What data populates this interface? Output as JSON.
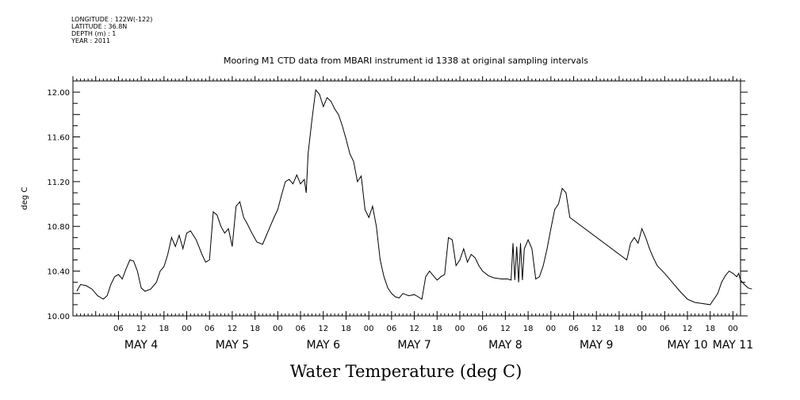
{
  "header": {
    "longitude": "LONGITUDE : 122W(-122)",
    "latitude": "LATITUDE : 36.8N",
    "depth": "DEPTH (m) : 1",
    "year": "YEAR : 2011"
  },
  "chart_data": {
    "type": "line",
    "title": "Mooring M1 CTD data from MBARI instrument id 1338 at original sampling intervals",
    "xlabel": "Water Temperature (deg C)",
    "ylabel": "deg C",
    "xlim": [
      "2011-05-03T18:00",
      "2011-05-11T02:00"
    ],
    "ylim": [
      10.0,
      12.1
    ],
    "y_ticks": [
      "10.00",
      "10.40",
      "10.80",
      "11.20",
      "11.60",
      "12.00"
    ],
    "x_hour_ticks": [
      {
        "t": "2011-05-04T06:00",
        "label": "06"
      },
      {
        "t": "2011-05-04T12:00",
        "label": "12"
      },
      {
        "t": "2011-05-04T18:00",
        "label": "18"
      },
      {
        "t": "2011-05-05T00:00",
        "label": "00"
      },
      {
        "t": "2011-05-05T06:00",
        "label": "06"
      },
      {
        "t": "2011-05-05T12:00",
        "label": "12"
      },
      {
        "t": "2011-05-05T18:00",
        "label": "18"
      },
      {
        "t": "2011-05-06T00:00",
        "label": "00"
      },
      {
        "t": "2011-05-06T06:00",
        "label": "06"
      },
      {
        "t": "2011-05-06T12:00",
        "label": "12"
      },
      {
        "t": "2011-05-06T18:00",
        "label": "18"
      },
      {
        "t": "2011-05-07T00:00",
        "label": "00"
      },
      {
        "t": "2011-05-07T06:00",
        "label": "06"
      },
      {
        "t": "2011-05-07T12:00",
        "label": "12"
      },
      {
        "t": "2011-05-07T18:00",
        "label": "18"
      },
      {
        "t": "2011-05-08T00:00",
        "label": "00"
      },
      {
        "t": "2011-05-08T06:00",
        "label": "06"
      },
      {
        "t": "2011-05-08T12:00",
        "label": "12"
      },
      {
        "t": "2011-05-08T18:00",
        "label": "18"
      },
      {
        "t": "2011-05-09T00:00",
        "label": "00"
      },
      {
        "t": "2011-05-09T06:00",
        "label": "06"
      },
      {
        "t": "2011-05-09T12:00",
        "label": "12"
      },
      {
        "t": "2011-05-09T18:00",
        "label": "18"
      },
      {
        "t": "2011-05-10T00:00",
        "label": "00"
      },
      {
        "t": "2011-05-10T06:00",
        "label": "06"
      },
      {
        "t": "2011-05-10T12:00",
        "label": "12"
      },
      {
        "t": "2011-05-10T18:00",
        "label": "18"
      },
      {
        "t": "2011-05-11T00:00",
        "label": "00"
      }
    ],
    "x_day_labels": [
      {
        "t": "2011-05-04T12:00",
        "label": "MAY  4"
      },
      {
        "t": "2011-05-05T12:00",
        "label": "MAY  5"
      },
      {
        "t": "2011-05-06T12:00",
        "label": "MAY  6"
      },
      {
        "t": "2011-05-07T12:00",
        "label": "MAY  7"
      },
      {
        "t": "2011-05-08T12:00",
        "label": "MAY  8"
      },
      {
        "t": "2011-05-09T12:00",
        "label": "MAY  9"
      },
      {
        "t": "2011-05-10T12:00",
        "label": "MAY 10"
      },
      {
        "t": "2011-05-11T00:00",
        "label": "MAY 11"
      }
    ],
    "series": [
      {
        "points": [
          [
            "2011-05-03T19:00",
            10.22
          ],
          [
            "2011-05-03T20:00",
            10.28
          ],
          [
            "2011-05-03T21:30",
            10.27
          ],
          [
            "2011-05-03T23:00",
            10.24
          ],
          [
            "2011-05-04T00:30",
            10.18
          ],
          [
            "2011-05-04T02:00",
            10.15
          ],
          [
            "2011-05-04T03:00",
            10.18
          ],
          [
            "2011-05-04T04:00",
            10.28
          ],
          [
            "2011-05-04T05:00",
            10.35
          ],
          [
            "2011-05-04T06:00",
            10.37
          ],
          [
            "2011-05-04T07:00",
            10.33
          ],
          [
            "2011-05-04T08:00",
            10.42
          ],
          [
            "2011-05-04T09:00",
            10.5
          ],
          [
            "2011-05-04T10:00",
            10.49
          ],
          [
            "2011-05-04T11:00",
            10.4
          ],
          [
            "2011-05-04T12:00",
            10.25
          ],
          [
            "2011-05-04T13:00",
            10.22
          ],
          [
            "2011-05-04T14:30",
            10.24
          ],
          [
            "2011-05-04T16:00",
            10.3
          ],
          [
            "2011-05-04T17:00",
            10.4
          ],
          [
            "2011-05-04T18:00",
            10.44
          ],
          [
            "2011-05-04T19:00",
            10.55
          ],
          [
            "2011-05-04T20:00",
            10.7
          ],
          [
            "2011-05-04T21:00",
            10.62
          ],
          [
            "2011-05-04T22:00",
            10.72
          ],
          [
            "2011-05-04T23:00",
            10.6
          ],
          [
            "2011-05-05T00:00",
            10.74
          ],
          [
            "2011-05-05T01:00",
            10.76
          ],
          [
            "2011-05-05T02:30",
            10.68
          ],
          [
            "2011-05-05T04:00",
            10.55
          ],
          [
            "2011-05-05T05:00",
            10.48
          ],
          [
            "2011-05-05T06:00",
            10.5
          ],
          [
            "2011-05-05T07:00",
            10.93
          ],
          [
            "2011-05-05T08:00",
            10.9
          ],
          [
            "2011-05-05T09:00",
            10.8
          ],
          [
            "2011-05-05T10:00",
            10.74
          ],
          [
            "2011-05-05T11:00",
            10.78
          ],
          [
            "2011-05-05T12:00",
            10.62
          ],
          [
            "2011-05-05T13:00",
            10.98
          ],
          [
            "2011-05-05T14:00",
            11.02
          ],
          [
            "2011-05-05T15:00",
            10.88
          ],
          [
            "2011-05-05T16:00",
            10.82
          ],
          [
            "2011-05-05T17:00",
            10.75
          ],
          [
            "2011-05-05T18:30",
            10.66
          ],
          [
            "2011-05-05T20:00",
            10.64
          ],
          [
            "2011-05-05T21:00",
            10.72
          ],
          [
            "2011-05-05T22:00",
            10.8
          ],
          [
            "2011-05-05T23:00",
            10.88
          ],
          [
            "2011-05-06T00:00",
            10.95
          ],
          [
            "2011-05-06T01:00",
            11.08
          ],
          [
            "2011-05-06T02:00",
            11.2
          ],
          [
            "2011-05-06T03:00",
            11.22
          ],
          [
            "2011-05-06T04:00",
            11.18
          ],
          [
            "2011-05-06T05:00",
            11.26
          ],
          [
            "2011-05-06T06:00",
            11.18
          ],
          [
            "2011-05-06T07:00",
            11.22
          ],
          [
            "2011-05-06T07:30",
            11.1
          ],
          [
            "2011-05-06T08:00",
            11.45
          ],
          [
            "2011-05-06T09:00",
            11.75
          ],
          [
            "2011-05-06T10:00",
            12.02
          ],
          [
            "2011-05-06T11:00",
            11.98
          ],
          [
            "2011-05-06T12:00",
            11.87
          ],
          [
            "2011-05-06T13:00",
            11.95
          ],
          [
            "2011-05-06T14:00",
            11.92
          ],
          [
            "2011-05-06T15:00",
            11.85
          ],
          [
            "2011-05-06T16:00",
            11.8
          ],
          [
            "2011-05-06T17:00",
            11.7
          ],
          [
            "2011-05-06T18:00",
            11.58
          ],
          [
            "2011-05-06T19:00",
            11.45
          ],
          [
            "2011-05-06T20:00",
            11.38
          ],
          [
            "2011-05-06T21:00",
            11.2
          ],
          [
            "2011-05-06T22:00",
            11.25
          ],
          [
            "2011-05-06T23:00",
            10.95
          ],
          [
            "2011-05-07T00:00",
            10.88
          ],
          [
            "2011-05-07T01:00",
            10.98
          ],
          [
            "2011-05-07T02:00",
            10.8
          ],
          [
            "2011-05-07T03:00",
            10.5
          ],
          [
            "2011-05-07T04:00",
            10.35
          ],
          [
            "2011-05-07T05:00",
            10.25
          ],
          [
            "2011-05-07T06:00",
            10.2
          ],
          [
            "2011-05-07T07:00",
            10.17
          ],
          [
            "2011-05-07T08:00",
            10.16
          ],
          [
            "2011-05-07T09:00",
            10.2
          ],
          [
            "2011-05-07T10:30",
            10.18
          ],
          [
            "2011-05-07T12:00",
            10.19
          ],
          [
            "2011-05-07T13:00",
            10.17
          ],
          [
            "2011-05-07T14:00",
            10.15
          ],
          [
            "2011-05-07T15:00",
            10.35
          ],
          [
            "2011-05-07T16:00",
            10.4
          ],
          [
            "2011-05-07T17:00",
            10.36
          ],
          [
            "2011-05-07T18:00",
            10.32
          ],
          [
            "2011-05-07T19:00",
            10.35
          ],
          [
            "2011-05-07T20:00",
            10.37
          ],
          [
            "2011-05-07T21:00",
            10.7
          ],
          [
            "2011-05-07T22:00",
            10.68
          ],
          [
            "2011-05-07T23:00",
            10.45
          ],
          [
            "2011-05-08T00:00",
            10.5
          ],
          [
            "2011-05-08T01:00",
            10.6
          ],
          [
            "2011-05-08T02:00",
            10.48
          ],
          [
            "2011-05-08T03:00",
            10.55
          ],
          [
            "2011-05-08T04:00",
            10.52
          ],
          [
            "2011-05-08T05:00",
            10.45
          ],
          [
            "2011-05-08T06:00",
            10.4
          ],
          [
            "2011-05-08T07:30",
            10.36
          ],
          [
            "2011-05-08T09:00",
            10.34
          ],
          [
            "2011-05-08T11:00",
            10.33
          ],
          [
            "2011-05-08T12:30",
            10.33
          ],
          [
            "2011-05-08T13:30",
            10.32
          ],
          [
            "2011-05-08T14:00",
            10.65
          ],
          [
            "2011-05-08T14:30",
            10.32
          ],
          [
            "2011-05-08T15:00",
            10.62
          ],
          [
            "2011-05-08T15:30",
            10.3
          ],
          [
            "2011-05-08T16:00",
            10.65
          ],
          [
            "2011-05-08T16:30",
            10.32
          ],
          [
            "2011-05-08T17:00",
            10.6
          ],
          [
            "2011-05-08T18:00",
            10.68
          ],
          [
            "2011-05-08T19:00",
            10.6
          ],
          [
            "2011-05-08T20:00",
            10.33
          ],
          [
            "2011-05-08T21:00",
            10.35
          ],
          [
            "2011-05-08T22:00",
            10.45
          ],
          [
            "2011-05-08T23:00",
            10.6
          ],
          [
            "2011-05-09T00:00",
            10.78
          ],
          [
            "2011-05-09T01:00",
            10.95
          ],
          [
            "2011-05-09T02:00",
            11.0
          ],
          [
            "2011-05-09T03:00",
            11.14
          ],
          [
            "2011-05-09T04:00",
            11.1
          ],
          [
            "2011-05-09T05:00",
            10.88
          ],
          [
            "2011-05-09T20:00",
            10.5
          ],
          [
            "2011-05-09T21:00",
            10.65
          ],
          [
            "2011-05-09T22:00",
            10.7
          ],
          [
            "2011-05-09T23:00",
            10.65
          ],
          [
            "2011-05-10T00:00",
            10.78
          ],
          [
            "2011-05-10T01:00",
            10.7
          ],
          [
            "2011-05-10T02:00",
            10.6
          ],
          [
            "2011-05-10T03:00",
            10.52
          ],
          [
            "2011-05-10T04:00",
            10.45
          ],
          [
            "2011-05-10T06:00",
            10.38
          ],
          [
            "2011-05-10T08:00",
            10.3
          ],
          [
            "2011-05-10T10:00",
            10.22
          ],
          [
            "2011-05-10T12:00",
            10.15
          ],
          [
            "2011-05-10T14:00",
            10.12
          ],
          [
            "2011-05-10T16:00",
            10.11
          ],
          [
            "2011-05-10T18:00",
            10.1
          ],
          [
            "2011-05-10T19:00",
            10.15
          ],
          [
            "2011-05-10T20:00",
            10.2
          ],
          [
            "2011-05-10T21:00",
            10.3
          ],
          [
            "2011-05-10T22:00",
            10.36
          ],
          [
            "2011-05-10T23:00",
            10.4
          ],
          [
            "2011-05-11T00:00",
            10.38
          ],
          [
            "2011-05-11T01:00",
            10.35
          ],
          [
            "2011-05-11T01:30",
            10.38
          ],
          [
            "2011-05-11T02:00",
            10.32
          ],
          [
            "2011-05-11T03:00",
            10.28
          ],
          [
            "2011-05-11T04:00",
            10.25
          ],
          [
            "2011-05-11T05:00",
            10.24
          ]
        ]
      }
    ]
  }
}
